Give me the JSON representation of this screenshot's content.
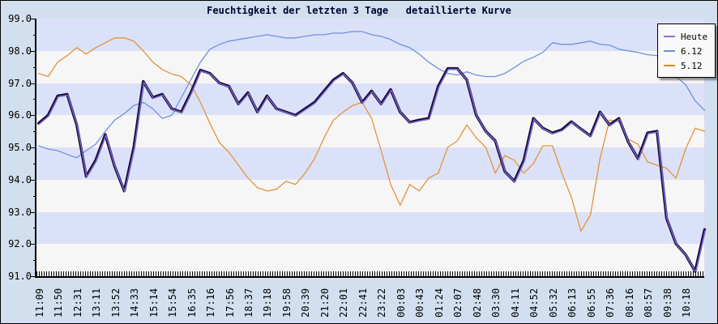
{
  "title": "Feuchtigkeit der letzten 3 Tage   detaillierte Kurve",
  "legend": {
    "items": [
      {
        "label": "Heute",
        "color": "#8a6fd8"
      },
      {
        "label": "6.12",
        "color": "#6d8fe0"
      },
      {
        "label": "5.12",
        "color": "#de8a28"
      }
    ]
  },
  "colors": {
    "outer_background": "#d1dfee",
    "band_light": "#f6f6f6",
    "band_blue": "#dbe1f8",
    "title_text": "#000033",
    "heute_line_core": "#7e63d4",
    "heute_line_outline": "#19103a",
    "line_6_12": "#7191e0",
    "line_5_12": "#e2943a"
  },
  "chart_data": {
    "type": "line",
    "title": "Feuchtigkeit der letzten 3 Tage   detaillierte Kurve",
    "ylabel": "",
    "xlabel": "",
    "ylim": [
      91.0,
      99.0
    ],
    "y_tick_labels": [
      "99.0",
      "98.0",
      "97.0",
      "96.0",
      "95.0",
      "94.0",
      "93.0",
      "92.0",
      "91.0"
    ],
    "x_tick_labels": [
      "11:09",
      "11:50",
      "12:31",
      "13:11",
      "13:52",
      "14:33",
      "15:14",
      "15:54",
      "16:35",
      "17:16",
      "17:56",
      "18:37",
      "19:18",
      "19:58",
      "20:39",
      "21:20",
      "22:01",
      "22:41",
      "23:22",
      "00:03",
      "00:43",
      "01:24",
      "02:07",
      "02:48",
      "03:30",
      "04:11",
      "04:52",
      "05:32",
      "06:13",
      "06:55",
      "07:36",
      "08:16",
      "08:57",
      "09:38",
      "10:18"
    ],
    "samples_per_label_interval": 2,
    "legend_position": "top-right",
    "grid": "alternating horizontal bands per 1.0 unit",
    "plot_bands": [
      "#dbe1f8",
      "#f6f6f6"
    ],
    "series": [
      {
        "name": "5.12",
        "color": "#e2943a",
        "width": 1.3,
        "values": [
          97.3,
          97.2,
          97.65,
          97.85,
          98.1,
          97.9,
          98.1,
          98.25,
          98.4,
          98.4,
          98.3,
          98.0,
          97.65,
          97.42,
          97.28,
          97.2,
          96.95,
          96.4,
          95.75,
          95.15,
          94.85,
          94.45,
          94.05,
          93.75,
          93.65,
          93.7,
          93.95,
          93.85,
          94.2,
          94.65,
          95.3,
          95.85,
          96.1,
          96.3,
          96.4,
          95.9,
          94.9,
          93.85,
          93.2,
          93.85,
          93.65,
          94.05,
          94.2,
          95.0,
          95.2,
          95.7,
          95.3,
          95.0,
          94.2,
          94.75,
          94.6,
          94.2,
          94.5,
          95.05,
          95.05,
          94.2,
          93.45,
          92.4,
          92.9,
          94.65,
          95.85,
          95.8,
          95.25,
          95.1,
          94.55,
          94.45,
          94.35,
          94.05,
          94.95,
          95.6,
          95.5
        ]
      },
      {
        "name": "6.12",
        "color": "#7191e0",
        "width": 1.3,
        "values": [
          95.05,
          94.95,
          94.9,
          94.78,
          94.68,
          94.9,
          95.1,
          95.5,
          95.85,
          96.05,
          96.3,
          96.4,
          96.2,
          95.9,
          96.0,
          96.55,
          97.1,
          97.65,
          98.05,
          98.2,
          98.3,
          98.35,
          98.4,
          98.45,
          98.5,
          98.45,
          98.4,
          98.4,
          98.45,
          98.5,
          98.5,
          98.55,
          98.55,
          98.6,
          98.6,
          98.5,
          98.45,
          98.35,
          98.2,
          98.1,
          97.9,
          97.65,
          97.45,
          97.3,
          97.25,
          97.35,
          97.25,
          97.2,
          97.2,
          97.3,
          97.48,
          97.68,
          97.8,
          97.95,
          98.25,
          98.2,
          98.2,
          98.25,
          98.3,
          98.2,
          98.18,
          98.05,
          98.0,
          97.95,
          97.88,
          97.85,
          97.6,
          97.2,
          96.95,
          96.45,
          96.15
        ]
      },
      {
        "name": "Heute",
        "color": "#7e63d4",
        "outline": "#19103a",
        "width": 3.4,
        "values": [
          95.75,
          96.0,
          96.6,
          96.65,
          95.7,
          94.1,
          94.6,
          95.4,
          94.4,
          93.65,
          95.0,
          97.05,
          96.55,
          96.65,
          96.2,
          96.1,
          96.7,
          97.4,
          97.3,
          97.0,
          96.9,
          96.35,
          96.7,
          96.1,
          96.6,
          96.2,
          96.1,
          96.0,
          96.2,
          96.4,
          96.75,
          97.1,
          97.3,
          97.0,
          96.4,
          96.75,
          96.35,
          96.8,
          96.1,
          95.78,
          95.85,
          95.9,
          96.9,
          97.45,
          97.45,
          97.1,
          96.0,
          95.5,
          95.2,
          94.25,
          93.95,
          94.6,
          95.9,
          95.6,
          95.45,
          95.55,
          95.8,
          95.57,
          95.36,
          96.1,
          95.7,
          95.9,
          95.15,
          94.65,
          95.45,
          95.5,
          92.8,
          92.0,
          91.67,
          91.15,
          92.45
        ]
      }
    ]
  }
}
